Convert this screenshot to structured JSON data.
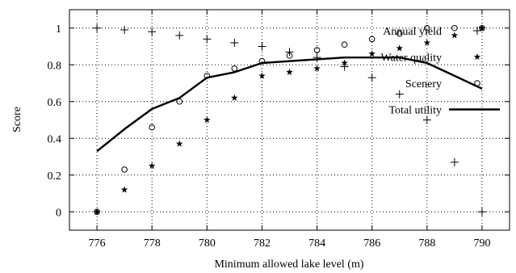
{
  "chart_data": {
    "type": "line",
    "title": "",
    "xlabel": "Minimum allowed lake level (m)",
    "ylabel": "Score",
    "xlim": [
      775,
      791
    ],
    "ylim": [
      -0.1,
      1.1
    ],
    "x_ticks": [
      776,
      778,
      780,
      782,
      784,
      786,
      788,
      790
    ],
    "y_ticks": [
      0,
      0.2,
      0.4,
      0.6,
      0.8,
      1
    ],
    "grid": true,
    "legend_position": "right",
    "x": [
      776,
      777,
      778,
      779,
      780,
      781,
      782,
      783,
      784,
      785,
      786,
      787,
      788,
      789,
      790
    ],
    "series": [
      {
        "name": "Annual yield",
        "marker": "plus",
        "style": "points",
        "values": [
          1.0,
          0.99,
          0.98,
          0.96,
          0.94,
          0.92,
          0.9,
          0.87,
          0.84,
          0.79,
          0.73,
          0.64,
          0.5,
          0.27,
          0.0
        ]
      },
      {
        "name": "Water quality",
        "marker": "star",
        "style": "points",
        "values": [
          0.0,
          0.12,
          0.25,
          0.37,
          0.5,
          0.62,
          0.74,
          0.76,
          0.78,
          0.81,
          0.86,
          0.89,
          0.92,
          0.96,
          1.0
        ]
      },
      {
        "name": "Scenery",
        "marker": "circle",
        "style": "points",
        "values": [
          0.0,
          0.23,
          0.46,
          0.6,
          0.74,
          0.78,
          0.82,
          0.85,
          0.88,
          0.91,
          0.94,
          0.97,
          1.0,
          1.0,
          1.0
        ]
      },
      {
        "name": "Total utility",
        "marker": "none",
        "style": "line",
        "values": [
          0.33,
          0.45,
          0.56,
          0.62,
          0.73,
          0.76,
          0.81,
          0.82,
          0.83,
          0.84,
          0.84,
          0.84,
          0.81,
          0.74,
          0.67
        ]
      }
    ]
  }
}
